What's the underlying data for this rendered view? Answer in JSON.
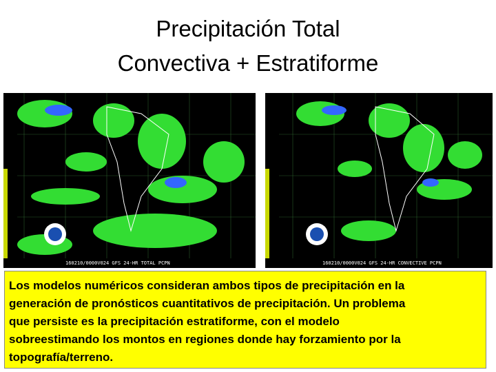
{
  "header": {
    "title_lines": [
      "Precipitación Total",
      "Convectiva + Estratiforme"
    ]
  },
  "maps": [
    {
      "caption": "160210/0000V024 GFS 24-HR TOTAL PCPN"
    },
    {
      "caption": "160210/0000V024 GFS 24-HR CONVECTIVE PCPN"
    }
  ],
  "text": {
    "lines": [
      "Los modelos numéricos consideran ambos tipos de precipitación en la",
      "generación de pronósticos cuantitativos de precipitación.  Un problema",
      "que persiste es la precipitación estratiforme, con el modelo",
      "sobreestimando los montos en regiones donde hay forzamiento por la",
      "topografía/terreno."
    ]
  }
}
